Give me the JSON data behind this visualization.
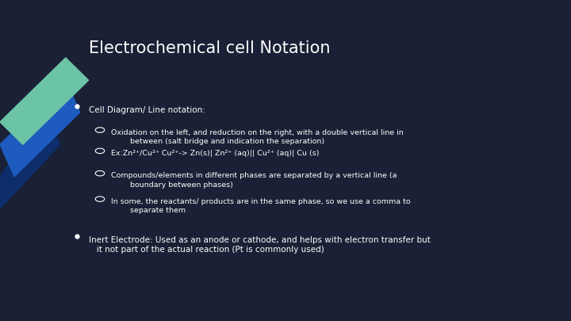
{
  "title": "Electrochemical cell Notation",
  "bg_color": "#1a2035",
  "title_color": "#ffffff",
  "text_color": "#ffffff",
  "accent_teal": "#6bc4a6",
  "accent_blue": "#1d5bbf",
  "accent_dark_blue": "#0d2d6b",
  "bullet1_head": "Cell Diagram/ Line notation:",
  "bullet1_subs": [
    "Oxidation on the left, and reduction on the right, with a double vertical line in\n        between (salt bridge and indication the separation)",
    "Ex:Zn²⁺/Cu²⁺ Cu²⁺-> Zn(s)| Zn²⁺ (aq)|| Cu²⁺ (aq)| Cu (s)",
    "Compounds/elements in different phases are separated by a vertical line (a\n        boundary between phases)",
    "In some, the reactants/ products are in the same phase, so we use a comma to\n        separate them"
  ],
  "bullet2": "Inert Electrode: Used as an anode or cathode, and helps with electron transfer but\n   it not part of the actual reaction (Pt is commonly used)"
}
